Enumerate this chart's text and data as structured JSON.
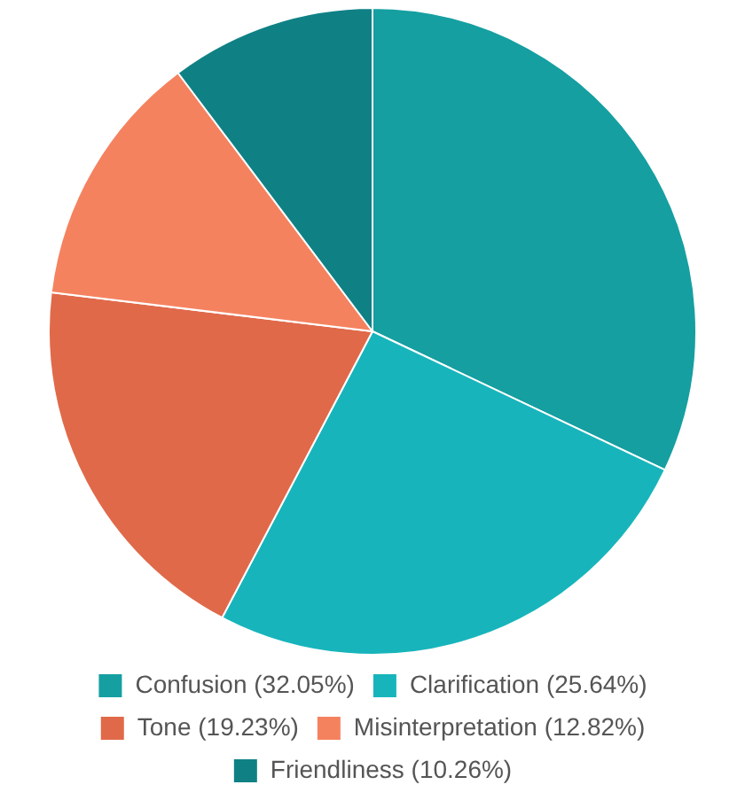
{
  "chart_data": {
    "type": "pie",
    "categories": [
      "Confusion (32.05%)",
      "Clarification (25.64%)",
      "Tone (19.23%)",
      "Misinterpretation (12.82%)",
      "Friendliness (10.26%)"
    ],
    "values": [
      32.05,
      25.64,
      19.23,
      12.82,
      10.26
    ],
    "colors": [
      "#159fa1",
      "#17b5bb",
      "#e0694a",
      "#f5825f",
      "#0f8185"
    ],
    "legend": "bottom"
  }
}
